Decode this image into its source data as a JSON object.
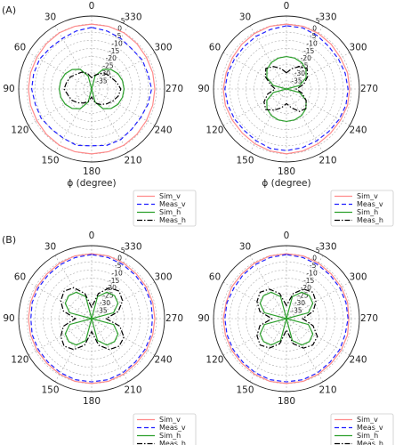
{
  "chart_data": [
    {
      "type": "polar",
      "panel_label": "(A)",
      "xlabel": "ϕ (degree)",
      "legend": "lower right",
      "theta": [
        0,
        15,
        30,
        45,
        60,
        75,
        90,
        105,
        120,
        135,
        150,
        165,
        180,
        195,
        210,
        225,
        240,
        255,
        270,
        285,
        300,
        315,
        330,
        345
      ],
      "rlim": [
        -40,
        5
      ],
      "rticks": [
        -35,
        -30,
        -25,
        -20,
        -15,
        -10,
        -5,
        0,
        5
      ],
      "thetaticks": [
        0,
        30,
        60,
        90,
        120,
        150,
        180,
        210,
        240,
        270,
        300,
        330
      ],
      "grid": true,
      "series": [
        {
          "name": "Sim_v",
          "color": "#ff8a8a",
          "linestyle": "solid",
          "values": [
            0,
            0,
            0,
            -0.5,
            -1,
            -1,
            -1,
            -1,
            -1,
            -0.5,
            0,
            0,
            0,
            0,
            0,
            -0.5,
            -1,
            -1,
            -1,
            -1,
            -1,
            -0.5,
            0,
            0
          ]
        },
        {
          "name": "Meas_v",
          "color": "#1f1fff",
          "linestyle": "dashed",
          "values": [
            -2,
            -3,
            -4,
            -4,
            -3,
            -3,
            -3,
            -4,
            -4,
            -5,
            -5,
            -4,
            -5,
            -4,
            -4,
            -5,
            -5,
            -4,
            -3,
            -4,
            -4,
            -5,
            -4,
            -3
          ]
        },
        {
          "name": "Sim_h",
          "color": "#2ca02c",
          "linestyle": "solid",
          "values": [
            -40,
            -31.7,
            -26,
            -23,
            -21.2,
            -20.3,
            -20,
            -20.3,
            -21.2,
            -23,
            -26,
            -31.7,
            -40,
            -31.7,
            -26,
            -23,
            -21.2,
            -20.3,
            -20,
            -20.3,
            -21.2,
            -23,
            -26,
            -31.7
          ]
        },
        {
          "name": "Meas_h",
          "color": "#000000",
          "linestyle": "dashdot",
          "values": [
            -33,
            -30,
            -28,
            -27,
            -25,
            -24,
            -23,
            -25,
            -26,
            -28,
            -30,
            -32,
            -35,
            -31,
            -29,
            -27,
            -25,
            -23,
            -22,
            -24,
            -26,
            -27,
            -29,
            -31
          ]
        }
      ]
    },
    {
      "type": "polar",
      "xlabel": "ϕ (degree)",
      "legend": "lower right",
      "theta": [
        0,
        15,
        30,
        45,
        60,
        75,
        90,
        105,
        120,
        135,
        150,
        165,
        180,
        195,
        210,
        225,
        240,
        255,
        270,
        285,
        300,
        315,
        330,
        345
      ],
      "rlim": [
        -40,
        5
      ],
      "rticks": [
        -35,
        -30,
        -25,
        -20,
        -15,
        -10,
        -5,
        0,
        5
      ],
      "thetaticks": [
        0,
        30,
        60,
        90,
        120,
        150,
        180,
        210,
        240,
        270,
        300,
        330
      ],
      "grid": true,
      "series": [
        {
          "name": "Sim_v",
          "color": "#ff8a8a",
          "linestyle": "solid",
          "values": [
            0,
            0,
            -0.5,
            -1,
            -1.5,
            -1.5,
            -1,
            -1,
            -1.5,
            -1.5,
            -1,
            -0.5,
            0,
            -0.5,
            -1,
            -1.5,
            -1.5,
            -1,
            -1,
            -1,
            -1.5,
            -1,
            -0.5,
            0
          ]
        },
        {
          "name": "Meas_v",
          "color": "#1f1fff",
          "linestyle": "dashed",
          "values": [
            -1,
            -2,
            -2.5,
            -3,
            -3,
            -2.5,
            -2,
            -2.5,
            -3,
            -3.5,
            -3,
            -2,
            -2,
            -2.5,
            -3,
            -3,
            -2.5,
            -2,
            -2,
            -2.5,
            -3,
            -3,
            -2,
            -1
          ]
        },
        {
          "name": "Sim_h",
          "color": "#2ca02c",
          "linestyle": "solid",
          "values": [
            -20,
            -20.3,
            -21.2,
            -23,
            -26,
            -31.7,
            -40,
            -31.7,
            -26,
            -23,
            -21.2,
            -20.3,
            -20,
            -20.3,
            -21.2,
            -23,
            -26,
            -31.7,
            -40,
            -31.7,
            -26,
            -23,
            -21.2,
            -20.3
          ]
        },
        {
          "name": "Meas_h",
          "color": "#000000",
          "linestyle": "dashdot",
          "values": [
            -30,
            -27,
            -24,
            -22,
            -25,
            -30,
            -33,
            -28,
            -24,
            -22,
            -25,
            -28,
            -31,
            -28,
            -24,
            -23,
            -26,
            -30,
            -34,
            -29,
            -25,
            -22,
            -24,
            -27
          ]
        }
      ]
    },
    {
      "type": "polar",
      "panel_label": "(B)",
      "legend": "lower right",
      "theta": [
        0,
        15,
        30,
        45,
        60,
        75,
        90,
        105,
        120,
        135,
        150,
        165,
        180,
        195,
        210,
        225,
        240,
        255,
        270,
        285,
        300,
        315,
        330,
        345
      ],
      "rlim": [
        -40,
        5
      ],
      "rticks": [
        -35,
        -30,
        -25,
        -20,
        -15,
        -10,
        -5,
        0,
        5
      ],
      "thetaticks": [
        0,
        30,
        60,
        90,
        120,
        150,
        180,
        210,
        240,
        270,
        300,
        330
      ],
      "grid": true,
      "series": [
        {
          "name": "Sim_v",
          "color": "#ff8a8a",
          "linestyle": "solid",
          "values": [
            0,
            0,
            -0.5,
            -1,
            -1,
            -1,
            -1,
            -1,
            -1,
            -1,
            -0.5,
            0,
            0,
            0,
            -0.5,
            -1,
            -1,
            -1,
            -1,
            -1,
            -1,
            -1,
            -0.5,
            0
          ]
        },
        {
          "name": "Meas_v",
          "color": "#1f1fff",
          "linestyle": "dashed",
          "values": [
            -0.5,
            -1,
            -1.5,
            -2,
            -2,
            -2,
            -2.5,
            -2,
            -2,
            -2,
            -1.5,
            -1,
            -1,
            -1,
            -1.5,
            -2,
            -2,
            -2,
            -2.5,
            -2,
            -2,
            -2,
            -1.5,
            -1
          ]
        },
        {
          "name": "Sim_h",
          "color": "#2ca02c",
          "linestyle": "solid",
          "values": [
            -40,
            -26,
            -21.2,
            -20,
            -21.2,
            -26,
            -40,
            -26,
            -21.2,
            -20,
            -21.2,
            -26,
            -40,
            -26,
            -21.2,
            -20,
            -21.2,
            -26,
            -40,
            -26,
            -21.2,
            -20,
            -21.2,
            -26
          ]
        },
        {
          "name": "Meas_h",
          "color": "#000000",
          "linestyle": "dashdot",
          "values": [
            -33,
            -24,
            -18,
            -16,
            -18,
            -22,
            -30,
            -22,
            -18,
            -16,
            -18,
            -23,
            -32,
            -23,
            -18,
            -16,
            -17,
            -22,
            -31,
            -23,
            -18,
            -16,
            -18,
            -24
          ]
        }
      ]
    },
    {
      "type": "polar",
      "legend": "lower right",
      "theta": [
        0,
        15,
        30,
        45,
        60,
        75,
        90,
        105,
        120,
        135,
        150,
        165,
        180,
        195,
        210,
        225,
        240,
        255,
        270,
        285,
        300,
        315,
        330,
        345
      ],
      "rlim": [
        -40,
        5
      ],
      "rticks": [
        -35,
        -30,
        -25,
        -20,
        -15,
        -10,
        -5,
        0,
        5
      ],
      "thetaticks": [
        0,
        30,
        60,
        90,
        120,
        150,
        180,
        210,
        240,
        270,
        300,
        330
      ],
      "grid": true,
      "series": [
        {
          "name": "Sim_v",
          "color": "#ff8a8a",
          "linestyle": "solid",
          "values": [
            0,
            0,
            -0.5,
            -1,
            -1,
            -1.5,
            -1,
            -1,
            -1,
            -1,
            -0.5,
            0,
            0,
            0,
            -0.5,
            -1,
            -1,
            -1,
            -1.5,
            -1,
            -1,
            -1,
            -0.5,
            0
          ]
        },
        {
          "name": "Meas_v",
          "color": "#1f1fff",
          "linestyle": "dashed",
          "values": [
            -0.5,
            -1,
            -1.5,
            -2,
            -2.5,
            -2,
            -2,
            -2,
            -2,
            -2,
            -1.5,
            -1,
            -1,
            -1,
            -1.5,
            -2,
            -2,
            -2.5,
            -2,
            -2,
            -2,
            -2,
            -1.5,
            -1
          ]
        },
        {
          "name": "Sim_h",
          "color": "#2ca02c",
          "linestyle": "solid",
          "values": [
            -40,
            -26,
            -21.2,
            -20,
            -21.2,
            -26,
            -40,
            -26,
            -21.2,
            -20,
            -21.2,
            -26,
            -40,
            -26,
            -21.2,
            -20,
            -21.2,
            -26,
            -40,
            -26,
            -21.2,
            -20,
            -21.2,
            -26
          ]
        },
        {
          "name": "Meas_h",
          "color": "#000000",
          "linestyle": "dashdot",
          "values": [
            -32,
            -24,
            -19,
            -17,
            -19,
            -23,
            -31,
            -23,
            -19,
            -17,
            -19,
            -24,
            -33,
            -24,
            -19,
            -17,
            -18,
            -23,
            -30,
            -23,
            -19,
            -17,
            -19,
            -24
          ]
        }
      ]
    }
  ]
}
